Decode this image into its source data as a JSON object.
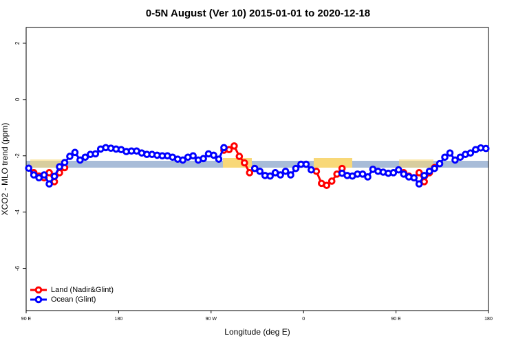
{
  "chart_data": {
    "type": "line",
    "title": "0-5N August (Ver 10)   2015-01-01 to 2020-12-18",
    "x_label": "Longitude (deg E)",
    "y_label": "XCO2 - MLO trend (ppm)",
    "x": [
      92.5,
      97.5,
      102.5,
      107.5,
      112.5,
      117.5,
      122.5,
      127.5,
      132.5,
      137.5,
      142.5,
      147.5,
      152.5,
      157.5,
      162.5,
      167.5,
      172.5,
      177.5,
      182.5,
      187.5,
      192.5,
      197.5,
      202.5,
      207.5,
      212.5,
      217.5,
      222.5,
      227.5,
      232.5,
      237.5,
      242.5,
      247.5,
      252.5,
      257.5,
      262.5,
      267.5,
      272.5,
      277.5,
      282.5,
      287.5,
      292.5,
      297.5,
      302.5,
      307.5,
      312.5,
      317.5,
      322.5,
      327.5,
      332.5,
      337.5,
      342.5,
      347.5,
      352.5,
      357.5,
      362.5,
      367.5,
      372.5,
      377.5,
      382.5,
      387.5,
      392.5,
      397.5,
      402.5,
      407.5,
      412.5,
      417.5,
      422.5,
      427.5,
      432.5,
      437.5,
      442.5,
      447.5,
      452.5,
      457.5,
      462.5,
      467.5,
      472.5,
      477.5,
      482.5,
      487.5,
      492.5,
      497.5,
      502.5,
      507.5,
      512.5,
      517.5,
      522.5,
      527.5,
      532.5,
      537.5
    ],
    "series": [
      {
        "name": "Land (Nadir&Glint)",
        "color": "#ff0000",
        "values": [
          null,
          -2.6,
          -2.72,
          -2.78,
          -2.6,
          -2.92,
          -2.6,
          -2.42,
          null,
          null,
          null,
          null,
          null,
          null,
          null,
          null,
          null,
          null,
          null,
          null,
          null,
          null,
          null,
          null,
          null,
          null,
          null,
          null,
          null,
          null,
          null,
          null,
          null,
          null,
          null,
          null,
          null,
          null,
          -1.8,
          -1.78,
          -1.65,
          -2.02,
          -2.25,
          -2.6,
          -2.45,
          null,
          null,
          null,
          null,
          null,
          null,
          null,
          null,
          null,
          null,
          null,
          -2.55,
          -2.98,
          -3.05,
          -2.9,
          -2.65,
          -2.45,
          null,
          null,
          null,
          null,
          null,
          null,
          null,
          null,
          null,
          null,
          null,
          -2.6,
          -2.72,
          -2.78,
          -2.6,
          -2.92,
          -2.6,
          -2.42,
          null,
          null,
          null,
          null,
          null,
          null,
          null,
          null,
          null,
          null
        ]
      },
      {
        "name": "Ocean (Glint)",
        "color": "#0000ff",
        "values": [
          -2.44,
          -2.68,
          -2.78,
          -2.68,
          -3.0,
          -2.73,
          -2.39,
          -2.24,
          -2.02,
          -1.88,
          -2.15,
          -2.05,
          -1.95,
          -1.93,
          -1.76,
          -1.71,
          -1.73,
          -1.76,
          -1.78,
          -1.85,
          -1.83,
          -1.83,
          -1.9,
          -1.95,
          -1.95,
          -1.98,
          -2.0,
          -2.0,
          -2.05,
          -2.12,
          -2.15,
          -2.05,
          -2.0,
          -2.15,
          -2.1,
          -1.93,
          -1.98,
          -2.12,
          -1.71,
          null,
          null,
          null,
          null,
          null,
          -2.45,
          -2.55,
          -2.7,
          -2.72,
          -2.6,
          -2.68,
          -2.55,
          -2.68,
          -2.45,
          -2.3,
          -2.3,
          -2.5,
          null,
          null,
          null,
          null,
          null,
          -2.62,
          -2.7,
          -2.72,
          -2.65,
          -2.65,
          -2.75,
          -2.48,
          -2.55,
          -2.58,
          -2.62,
          -2.6,
          -2.5,
          -2.65,
          -2.75,
          -2.78,
          -3.0,
          -2.7,
          -2.55,
          -2.45,
          -2.28,
          -2.05,
          -1.9,
          -2.15,
          -2.05,
          -1.95,
          -1.9,
          -1.78,
          -1.72,
          -1.74
        ]
      }
    ],
    "xlim": [
      90,
      540
    ],
    "xticks": [
      {
        "value": 90,
        "label": "90 E"
      },
      180,
      {
        "value": 270,
        "label": "90 W"
      },
      {
        "value": 360,
        "label": "0"
      },
      {
        "value": 450,
        "label": "90 E"
      },
      {
        "value": 540,
        "label": "180"
      }
    ],
    "ylim": [
      -7.5,
      2.56
    ],
    "yticks": [
      2,
      0,
      -2,
      -4,
      -6
    ],
    "legend": "bottom-left"
  }
}
